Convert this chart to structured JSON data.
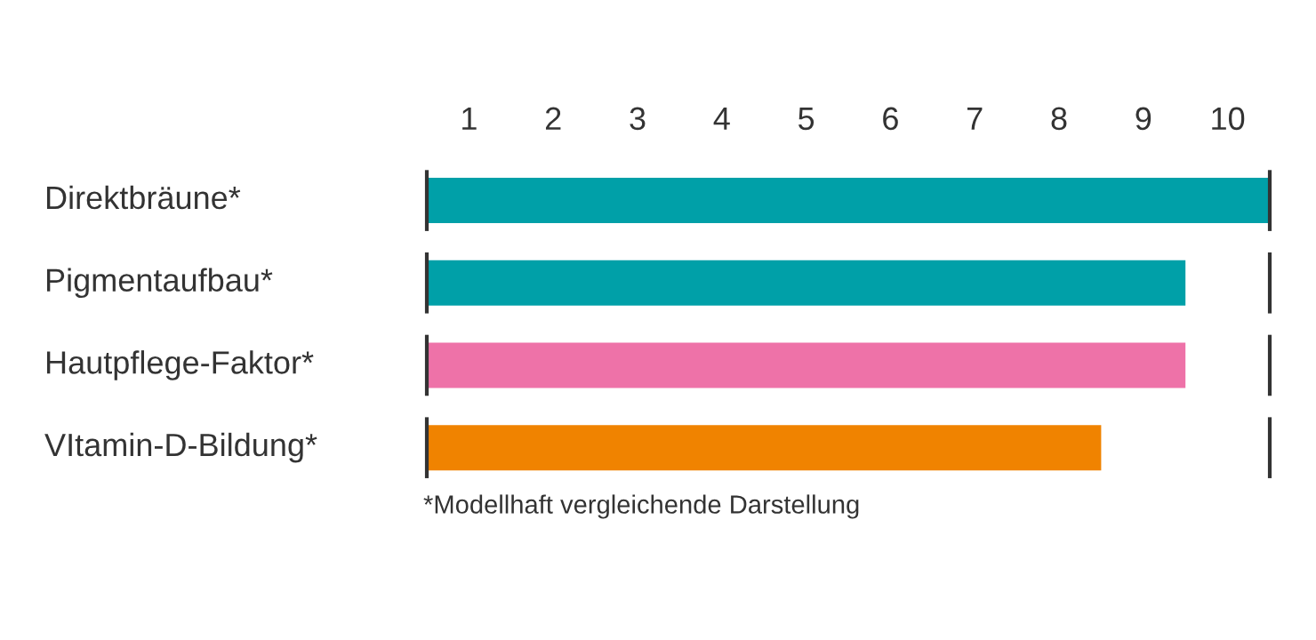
{
  "chart_data": {
    "type": "bar",
    "orientation": "horizontal",
    "categories": [
      "Direktbräune*",
      "Pigmentaufbau*",
      "Hautpflege-Faktor*",
      "VItamin-D-Bildung*"
    ],
    "values": [
      10,
      9,
      9,
      8
    ],
    "colors": [
      "#00a0a8",
      "#00a0a8",
      "#ee72a8",
      "#f08300"
    ],
    "xlim": [
      0,
      10
    ],
    "xticks": [
      {
        "value": 0.5,
        "label": "1"
      },
      {
        "value": 1.5,
        "label": "2"
      },
      {
        "value": 2.5,
        "label": "3"
      },
      {
        "value": 3.5,
        "label": "4"
      },
      {
        "value": 4.5,
        "label": "5"
      },
      {
        "value": 5.5,
        "label": "6"
      },
      {
        "value": 6.5,
        "label": "7"
      },
      {
        "value": 7.5,
        "label": "8"
      },
      {
        "value": 8.5,
        "label": "9"
      },
      {
        "value": 9.5,
        "label": "10"
      }
    ],
    "ref_lines": [
      {
        "axis": "x",
        "value": 0,
        "color": "#333333"
      },
      {
        "axis": "x",
        "value": 10,
        "color": "#333333"
      }
    ],
    "annotations": [
      "*Modellhaft vergleichende Darstellung"
    ],
    "grid": false,
    "legend": false
  }
}
